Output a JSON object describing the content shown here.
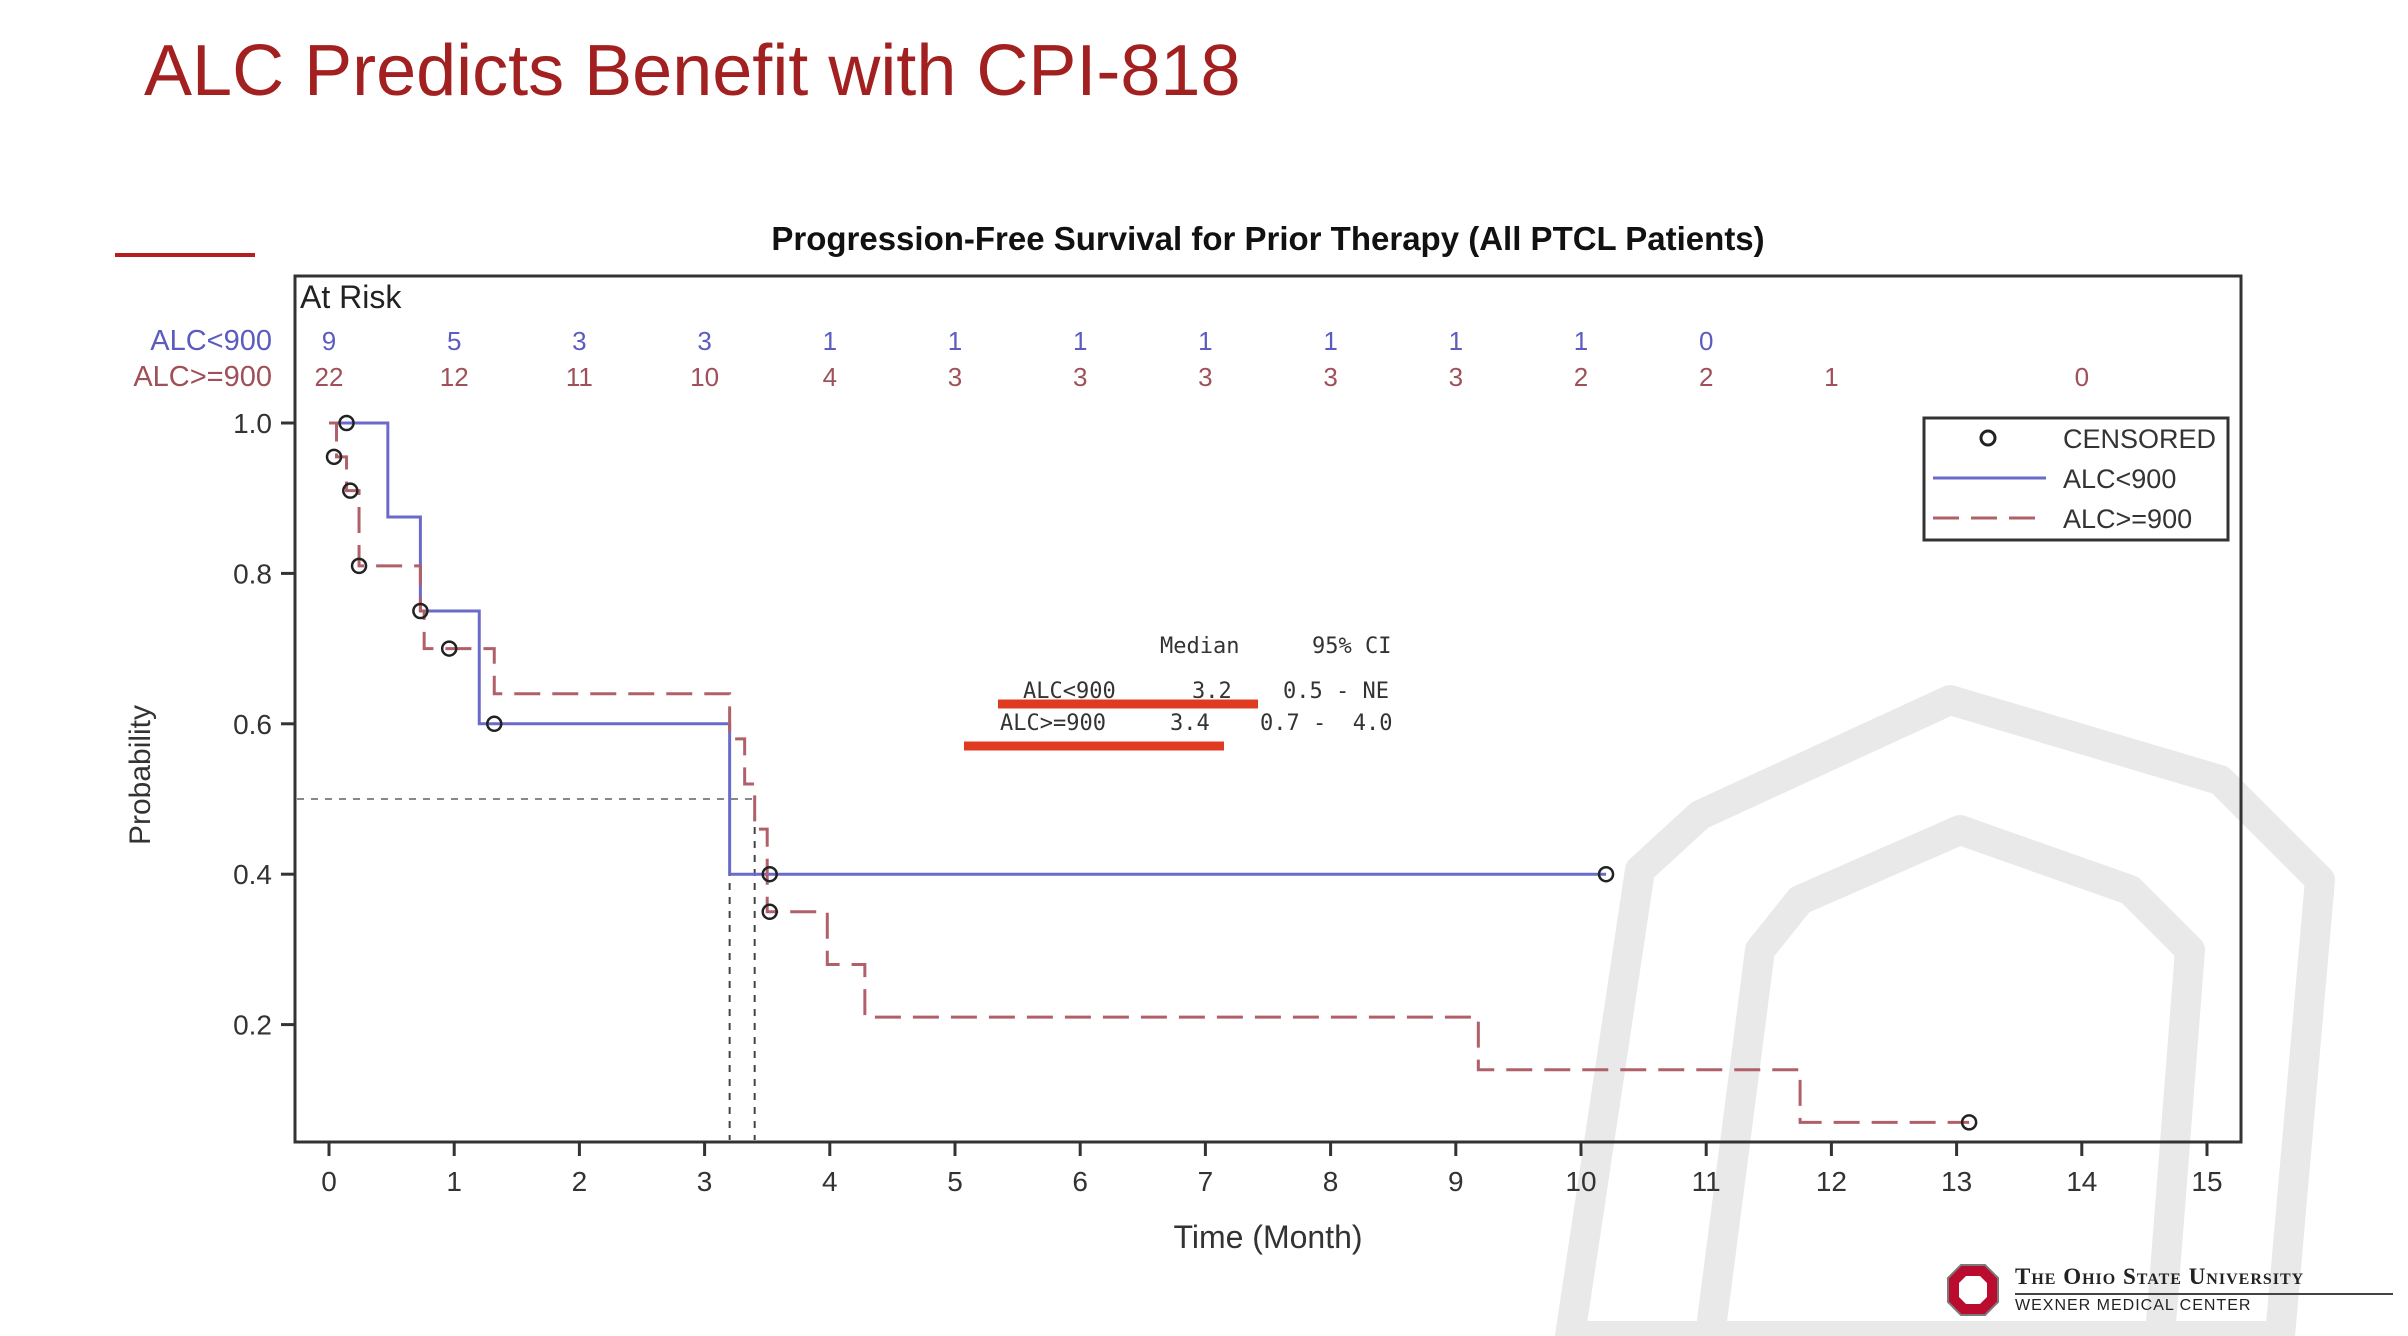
{
  "slide": {
    "title": "ALC Predicts Benefit with CPI-818"
  },
  "branding": {
    "university": "The Ohio State University",
    "center": "WEXNER MEDICAL CENTER",
    "colors": {
      "scarlet": "#ba0c2f",
      "title_red": "#a32020"
    }
  },
  "chart_data": {
    "type": "line",
    "subtype": "kaplan-meier step",
    "title": "Progression-Free Survival for Prior Therapy (All PTCL Patients)",
    "xlabel": "Time (Month)",
    "ylabel": "Probability",
    "xlim": [
      0,
      15
    ],
    "ylim": [
      0.05,
      1.0
    ],
    "x_ticks": [
      0,
      1,
      2,
      3,
      4,
      5,
      6,
      7,
      8,
      9,
      10,
      11,
      12,
      13,
      14,
      15
    ],
    "y_ticks": [
      0.2,
      0.4,
      0.6,
      0.8,
      1.0
    ],
    "y_tick_labels": [
      "0.2",
      "0.4",
      "0.6",
      "0.8",
      "1.0"
    ],
    "grid": false,
    "reference_lines": {
      "y": 0.5,
      "x": [
        3.2,
        3.4
      ]
    },
    "colors": {
      "alc_lt_900": "#6a6acb",
      "alc_ge_900": "#b06068",
      "highlight": "#e03a20"
    },
    "series": [
      {
        "name": "ALC<900",
        "style": "solid",
        "steps": [
          [
            0,
            1.0
          ],
          [
            0.47,
            0.875
          ],
          [
            0.73,
            0.75
          ],
          [
            1.2,
            0.6
          ],
          [
            3.2,
            0.4
          ],
          [
            10.2,
            0.4
          ]
        ],
        "censored": [
          [
            0.14,
            1.0
          ],
          [
            1.32,
            0.6
          ],
          [
            3.52,
            0.4
          ],
          [
            10.2,
            0.4
          ]
        ]
      },
      {
        "name": "ALC>=900",
        "style": "dashed",
        "steps": [
          [
            0,
            1.0
          ],
          [
            0.06,
            0.955
          ],
          [
            0.14,
            0.91
          ],
          [
            0.24,
            0.81
          ],
          [
            0.73,
            0.75
          ],
          [
            0.76,
            0.7
          ],
          [
            1.32,
            0.64
          ],
          [
            3.2,
            0.58
          ],
          [
            3.32,
            0.52
          ],
          [
            3.4,
            0.46
          ],
          [
            3.5,
            0.35
          ],
          [
            3.98,
            0.28
          ],
          [
            4.28,
            0.21
          ],
          [
            9.18,
            0.14
          ],
          [
            11.75,
            0.07
          ],
          [
            13.1,
            0.07
          ]
        ],
        "censored": [
          [
            0.04,
            0.955
          ],
          [
            0.17,
            0.91
          ],
          [
            0.24,
            0.81
          ],
          [
            0.73,
            0.75
          ],
          [
            0.96,
            0.7
          ],
          [
            3.52,
            0.35
          ],
          [
            13.1,
            0.07
          ]
        ]
      }
    ],
    "at_risk": {
      "label": "At Risk",
      "times": [
        0,
        1,
        2,
        3,
        4,
        5,
        6,
        7,
        8,
        9,
        10,
        11,
        12,
        13,
        14,
        15
      ],
      "rows": [
        {
          "name": "ALC<900",
          "counts": [
            "9",
            "5",
            "3",
            "3",
            "1",
            "1",
            "1",
            "1",
            "1",
            "1",
            "1",
            "0",
            "",
            "",
            "",
            ""
          ]
        },
        {
          "name": "ALC>=900",
          "counts": [
            "22",
            "12",
            "11",
            "10",
            "4",
            "3",
            "3",
            "3",
            "3",
            "3",
            "2",
            "2",
            "1",
            "",
            "0",
            ""
          ]
        }
      ]
    },
    "legend": {
      "placement": "top-right",
      "entries": [
        {
          "label": "CENSORED",
          "marker": "circle"
        },
        {
          "label": "ALC<900",
          "line": "solid"
        },
        {
          "label": "ALC>=900",
          "line": "dashed"
        }
      ]
    },
    "median_table": {
      "header": [
        "Median",
        "95% CI"
      ],
      "rows": [
        {
          "group": "ALC<900",
          "median": "3.2",
          "ci": "0.5 - NE"
        },
        {
          "group": "ALC>=900",
          "median": "3.4",
          "ci": "0.7 -  4.0"
        }
      ]
    }
  }
}
